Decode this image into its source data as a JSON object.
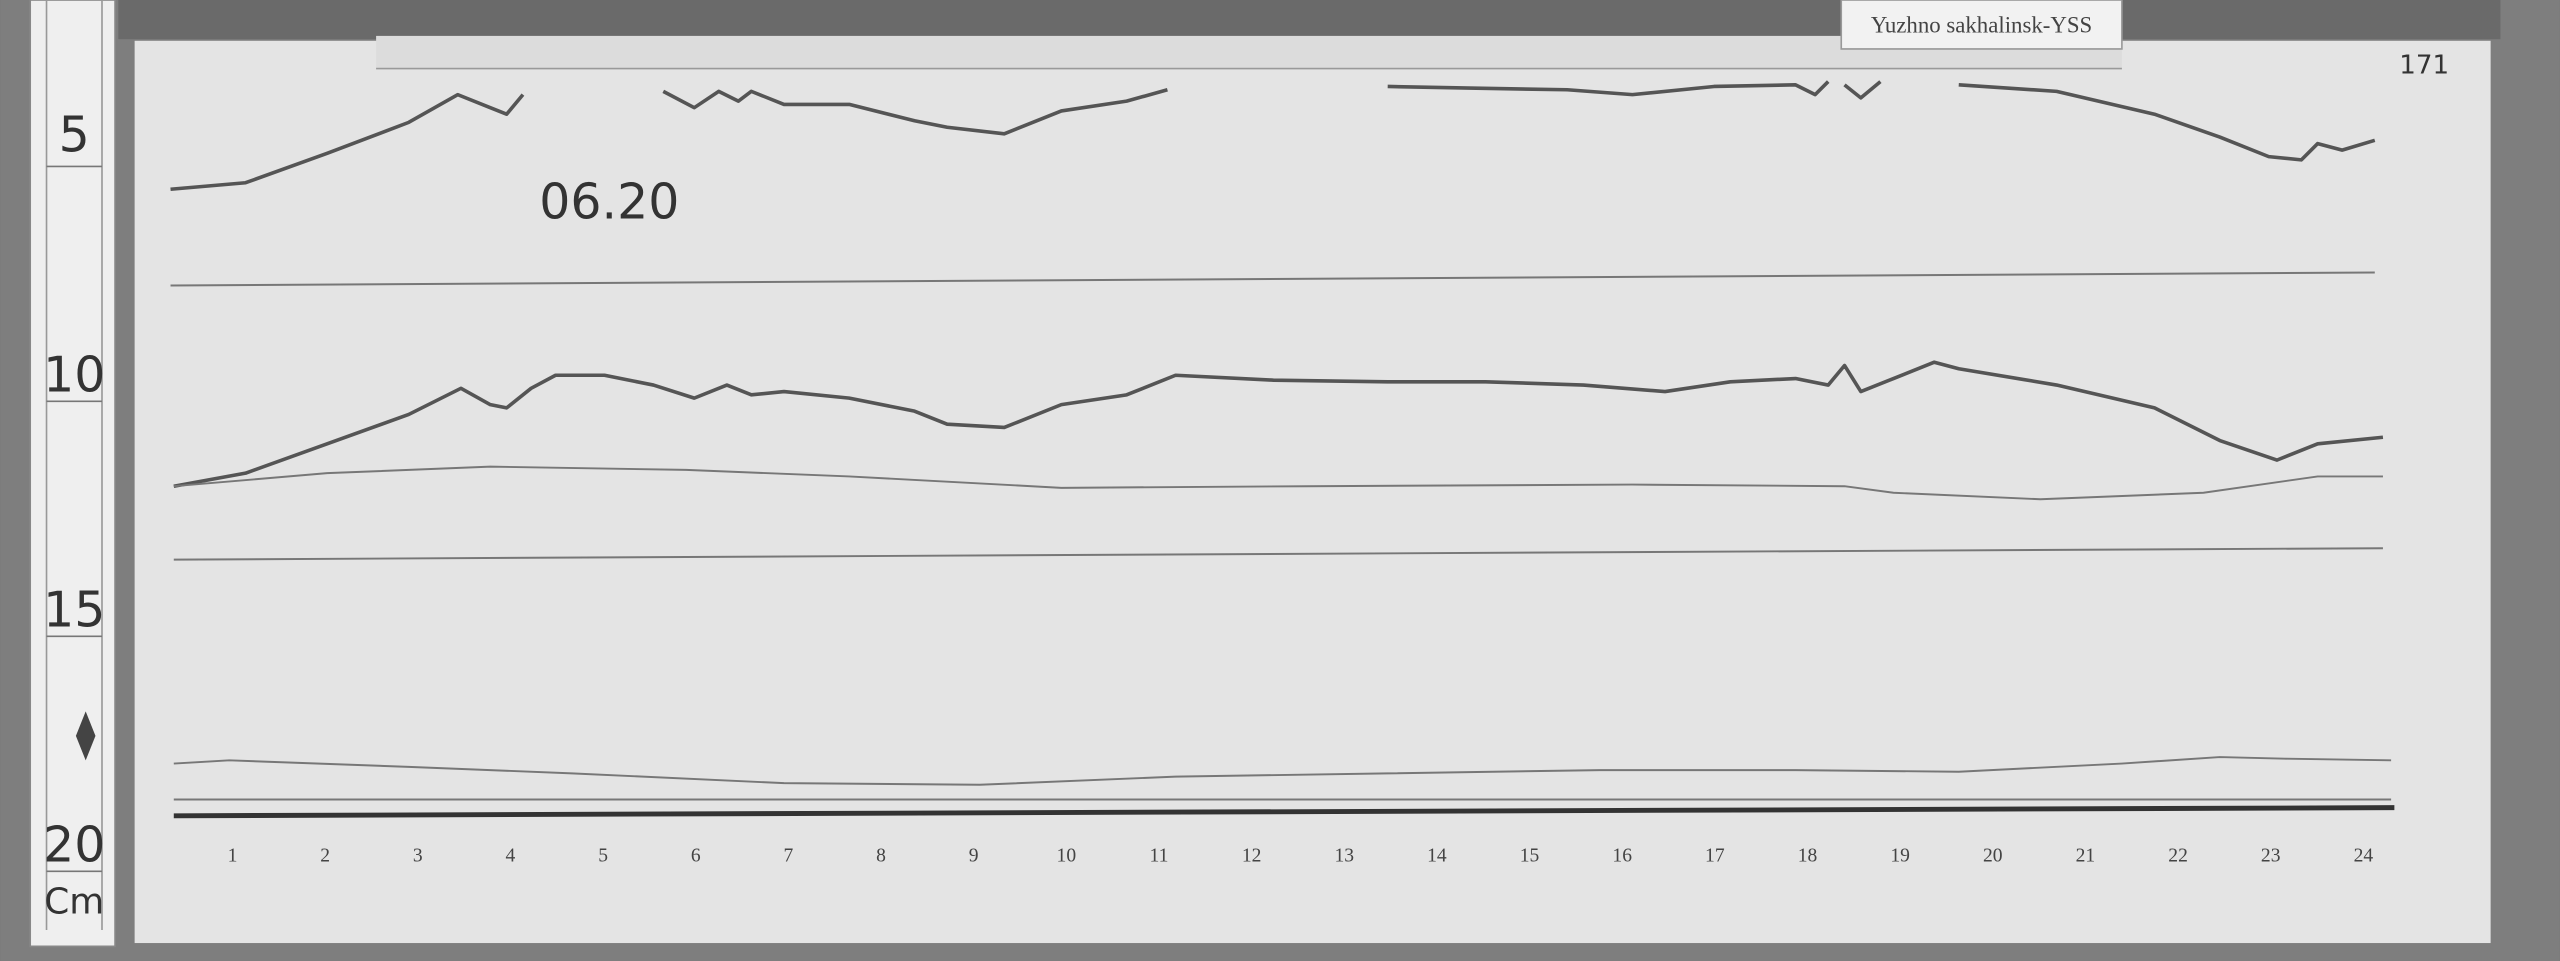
{
  "station_label": "Yuzhno sakhalinsk-YSS",
  "date_note": "06.20",
  "sheet_number": "171",
  "ruler": {
    "marks": [
      "5",
      "10",
      "15",
      "20"
    ],
    "unit": "Cm"
  },
  "hours": [
    "1",
    "2",
    "3",
    "4",
    "5",
    "6",
    "7",
    "8",
    "9",
    "10",
    "11",
    "12",
    "13",
    "14",
    "15",
    "16",
    "17",
    "18",
    "19",
    "20",
    "21",
    "22",
    "23",
    "24"
  ]
}
